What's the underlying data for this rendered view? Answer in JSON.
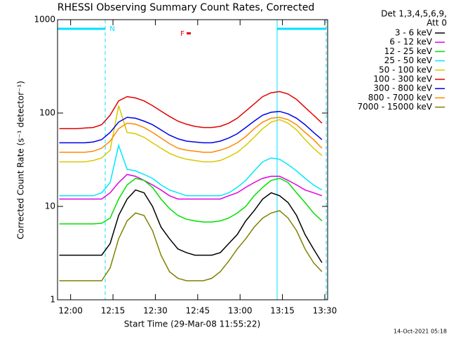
{
  "chart_data": {
    "type": "line",
    "title": "RHESSI Observing Summary Count Rates, Corrected",
    "xlabel": "Start Time (29-Mar-08 11:55:22)",
    "ylabel": "Corrected Count Rate (s⁻¹ detector⁻¹)",
    "legend_title": [
      "Det 1,3,4,5,6,9,",
      "Att 0"
    ],
    "footer": "14-Oct-2021 05:18",
    "annotations": [
      {
        "text": "N",
        "color": "#00e0ff"
      },
      {
        "text": "F",
        "color": "#e00000"
      }
    ],
    "log_y": true,
    "legend": "outside-right",
    "xlim": [
      "11:55:22",
      "13:31"
    ],
    "xticks": [
      "12:00",
      "12:15",
      "12:30",
      "12:45",
      "13:00",
      "13:15",
      "13:30"
    ],
    "ylim": [
      1,
      1000
    ],
    "yticks": [
      1,
      10,
      100,
      1000
    ],
    "x": [
      "11:56",
      "11:59",
      "12:02",
      "12:05",
      "12:08",
      "12:11",
      "12:14",
      "12:17",
      "12:20",
      "12:23",
      "12:26",
      "12:29",
      "12:32",
      "12:35",
      "12:38",
      "12:41",
      "12:44",
      "12:47",
      "12:50",
      "12:53",
      "12:56",
      "12:59",
      "13:02",
      "13:05",
      "13:08",
      "13:11",
      "13:14",
      "13:17",
      "13:20",
      "13:23",
      "13:26",
      "13:29"
    ],
    "series": [
      {
        "name": "3 - 6 keV",
        "color": "#000000",
        "values": [
          3,
          3,
          3,
          3,
          3,
          3,
          4,
          8,
          12,
          15,
          14,
          10,
          6,
          4.5,
          3.5,
          3.2,
          3,
          3,
          3,
          3.2,
          4,
          5,
          7,
          9,
          12,
          14,
          13,
          11,
          8,
          5,
          3.5,
          2.5
        ]
      },
      {
        "name": "6 - 12 keV",
        "color": "#e000e0",
        "values": [
          12,
          12,
          12,
          12,
          12,
          12,
          14,
          18,
          22,
          21,
          19,
          17,
          15,
          13,
          12,
          12,
          12,
          12,
          12,
          12,
          13,
          14,
          16,
          18,
          20,
          21,
          21,
          19,
          17,
          15,
          14,
          13
        ]
      },
      {
        "name": "12 - 25 keV",
        "color": "#00e000",
        "values": [
          6.5,
          6.5,
          6.5,
          6.5,
          6.5,
          6.6,
          7.5,
          12,
          17,
          20,
          19,
          16,
          12,
          9.5,
          8,
          7.3,
          7,
          6.8,
          6.8,
          7,
          7.5,
          8.5,
          10,
          13,
          16,
          19,
          20,
          18,
          14,
          11,
          8.5,
          7
        ]
      },
      {
        "name": "25 - 50 keV",
        "color": "#00e8ff",
        "values": [
          13,
          13,
          13,
          13,
          13,
          14,
          18,
          45,
          25,
          24,
          22,
          20,
          17,
          15,
          14,
          13,
          13,
          13,
          13,
          13,
          14,
          16,
          19,
          24,
          30,
          33,
          32,
          28,
          24,
          20,
          17,
          15
        ]
      },
      {
        "name": "50 - 100 keV",
        "color": "#d8c800",
        "values": [
          30,
          30,
          30,
          30,
          31,
          33,
          40,
          120,
          62,
          60,
          55,
          48,
          42,
          37,
          34,
          32,
          31,
          30,
          30,
          31,
          34,
          38,
          45,
          55,
          68,
          80,
          85,
          78,
          66,
          52,
          42,
          35
        ]
      },
      {
        "name": "100 - 300 keV",
        "color": "#e00000",
        "values": [
          68,
          68,
          68,
          69,
          70,
          75,
          95,
          135,
          150,
          145,
          135,
          120,
          105,
          92,
          82,
          76,
          72,
          70,
          70,
          72,
          78,
          88,
          105,
          125,
          150,
          165,
          170,
          160,
          140,
          115,
          95,
          78
        ]
      },
      {
        "name": "300 - 800 keV",
        "color": "#0000e8",
        "values": [
          48,
          48,
          48,
          48,
          49,
          52,
          62,
          80,
          90,
          88,
          82,
          75,
          66,
          58,
          53,
          50,
          49,
          48,
          48,
          50,
          54,
          60,
          70,
          82,
          95,
          102,
          104,
          98,
          88,
          75,
          62,
          52
        ]
      },
      {
        "name": "800 - 7000 keV",
        "color": "#ff8800",
        "values": [
          38,
          38,
          38,
          38,
          39,
          42,
          50,
          68,
          78,
          76,
          70,
          62,
          54,
          47,
          42,
          40,
          39,
          38,
          38,
          40,
          43,
          48,
          56,
          68,
          80,
          88,
          90,
          85,
          75,
          62,
          52,
          42
        ]
      },
      {
        "name": "7000 - 15000 keV",
        "color": "#808000",
        "values": [
          1.6,
          1.6,
          1.6,
          1.6,
          1.6,
          1.6,
          2.2,
          4.5,
          7,
          8.5,
          8,
          5.5,
          3,
          2,
          1.7,
          1.6,
          1.6,
          1.6,
          1.7,
          2,
          2.6,
          3.5,
          4.5,
          6,
          7.5,
          8.5,
          9,
          7.5,
          5.5,
          3.5,
          2.5,
          2
        ]
      }
    ]
  }
}
